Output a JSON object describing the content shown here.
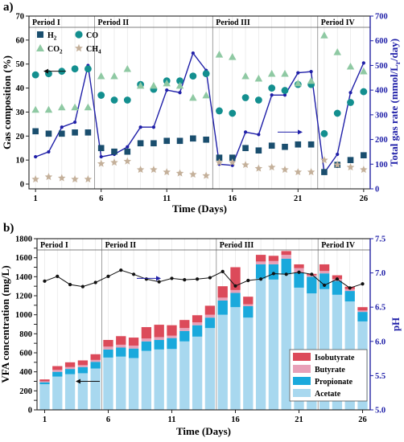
{
  "panel_a_label": "a)",
  "panel_b_label": "b)",
  "chart_data": [
    {
      "type": "scatter",
      "title": "",
      "xlabel": "Time (Days)",
      "ylabel": "Gas composition (%)",
      "y2label": "Total gas rate (mmol/Lr/day)",
      "xlim": [
        0.5,
        26.5
      ],
      "ylim": [
        -2,
        70
      ],
      "y2lim": [
        0,
        700
      ],
      "xticks": [
        1,
        6,
        11,
        16,
        21,
        26
      ],
      "yticks": [
        0,
        10,
        20,
        30,
        40,
        50,
        60,
        70
      ],
      "y2ticks": [
        0,
        100,
        200,
        300,
        400,
        500,
        600,
        700
      ],
      "periods": [
        {
          "label": "Period I",
          "start": 0.5,
          "end": 5.5
        },
        {
          "label": "Period II",
          "start": 5.5,
          "end": 14.5
        },
        {
          "label": "Period III",
          "start": 14.5,
          "end": 22.5
        },
        {
          "label": "Period IV",
          "start": 22.5,
          "end": 26.5
        }
      ],
      "legend": {
        "placement": "top-left",
        "entries": [
          "H2",
          "CO",
          "CO2",
          "CH4"
        ]
      },
      "x": [
        1,
        2,
        3,
        4,
        5,
        6,
        7,
        8,
        9,
        10,
        11,
        12,
        13,
        14,
        15,
        16,
        17,
        18,
        19,
        20,
        21,
        22,
        23,
        24,
        25,
        26
      ],
      "series": [
        {
          "name": "H2",
          "marker": "square",
          "color": "#1a4e6e",
          "axis": "left",
          "values": [
            22,
            21,
            21,
            21.5,
            21.5,
            15,
            13.5,
            13.5,
            17,
            17,
            18,
            18,
            19,
            18.5,
            11,
            11,
            15,
            14,
            16,
            15.5,
            16.5,
            16.5,
            5,
            8,
            10,
            12
          ]
        },
        {
          "name": "CO",
          "marker": "circle",
          "color": "#138f8f",
          "axis": "left",
          "values": [
            45.5,
            46,
            47,
            48,
            48,
            37,
            35,
            35,
            41.5,
            39.5,
            43,
            43,
            45,
            46,
            30.5,
            29.5,
            36,
            35,
            40,
            39,
            41.5,
            41.5,
            21,
            29.5,
            34,
            38.5
          ]
        },
        {
          "name": "CO2",
          "marker": "triangle",
          "color": "#8fc9a3",
          "axis": "left",
          "values": [
            31,
            31,
            32,
            32,
            32,
            45,
            45,
            48,
            41,
            41,
            42,
            41,
            36,
            37,
            54,
            53,
            45,
            44,
            46,
            46,
            42,
            43,
            62,
            55,
            49,
            47
          ]
        },
        {
          "name": "CH4",
          "marker": "star",
          "color": "#c4b09a",
          "axis": "left",
          "values": [
            2,
            3,
            2.5,
            2,
            2,
            8.5,
            9,
            9.5,
            6,
            6,
            5,
            4.5,
            4,
            3.5,
            9,
            9,
            8,
            6.5,
            7,
            6,
            5,
            5,
            10,
            8,
            7,
            6
          ]
        },
        {
          "name": "Total gas rate",
          "marker": "dot-line",
          "color": "#1f1fa8",
          "axis": "right",
          "values": [
            130,
            150,
            250,
            270,
            500,
            130,
            140,
            170,
            250,
            250,
            400,
            390,
            550,
            480,
            100,
            95,
            230,
            220,
            380,
            380,
            470,
            475,
            65,
            140,
            390,
            510
          ]
        }
      ]
    },
    {
      "type": "bar",
      "stacked": true,
      "title": "",
      "xlabel": "Time (Days)",
      "ylabel": "VFA concentration (mg/L)",
      "y2label": "pH",
      "xlim": [
        0.4,
        26.6
      ],
      "ylim": [
        0,
        1800
      ],
      "y2lim": [
        5.0,
        7.5
      ],
      "xticks": [
        1,
        6,
        11,
        16,
        21,
        26
      ],
      "yticks": [
        0,
        100,
        200,
        300,
        400,
        500,
        600,
        700,
        800,
        900,
        1000,
        1100,
        1200,
        1300,
        1400,
        1500,
        1600,
        1700,
        1800
      ],
      "y2ticks": [
        5.0,
        5.5,
        6.0,
        6.5,
        7.0,
        7.5
      ],
      "periods": [
        {
          "label": "Period I",
          "start": 0.4,
          "end": 5.5
        },
        {
          "label": "Period II",
          "start": 5.5,
          "end": 14.5
        },
        {
          "label": "Period III",
          "start": 14.5,
          "end": 22.5
        },
        {
          "label": "Period IV",
          "start": 22.5,
          "end": 26.6
        }
      ],
      "legend": {
        "placement": "bottom-right",
        "entries": [
          "Isobutyrate",
          "Butyrate",
          "Propionate",
          "Acetate"
        ]
      },
      "categories": [
        1,
        2,
        3,
        4,
        5,
        6,
        7,
        8,
        9,
        10,
        11,
        12,
        13,
        14,
        15,
        16,
        17,
        18,
        19,
        20,
        21,
        22,
        23,
        24,
        25,
        26
      ],
      "series": [
        {
          "name": "Acetate",
          "color": "#a8d8ef",
          "values": [
            270,
            350,
            375,
            385,
            435,
            550,
            560,
            545,
            620,
            635,
            640,
            720,
            770,
            860,
            1000,
            1080,
            970,
            1380,
            1370,
            1430,
            1285,
            1225,
            1270,
            1210,
            1140,
            930
          ]
        },
        {
          "name": "Propionate",
          "color": "#1aa9dc",
          "values": [
            20,
            50,
            55,
            65,
            70,
            85,
            95,
            100,
            100,
            100,
            115,
            110,
            120,
            110,
            150,
            150,
            120,
            150,
            160,
            160,
            160,
            175,
            165,
            145,
            110,
            100
          ]
        },
        {
          "name": "Butyrate",
          "color": "#e8a0b8",
          "values": [
            10,
            20,
            20,
            20,
            20,
            30,
            30,
            30,
            30,
            30,
            25,
            30,
            30,
            30,
            30,
            30,
            20,
            30,
            35,
            40,
            45,
            15,
            25,
            20,
            20,
            15
          ]
        },
        {
          "name": "Isobutyrate",
          "color": "#dc4a5a",
          "values": [
            20,
            40,
            50,
            50,
            60,
            70,
            90,
            85,
            120,
            130,
            110,
            85,
            75,
            95,
            120,
            240,
            80,
            70,
            55,
            40,
            40,
            15,
            70,
            40,
            25,
            35
          ]
        },
        {
          "name": "pH",
          "marker": "dot-line",
          "color": "#1f1fa8",
          "axis": "right",
          "values": [
            6.88,
            6.95,
            6.83,
            6.8,
            6.86,
            6.95,
            7.04,
            6.98,
            6.91,
            6.87,
            6.92,
            6.9,
            6.91,
            6.93,
            7.02,
            6.81,
            6.89,
            6.91,
            6.99,
            6.98,
            7.01,
            6.98,
            6.82,
            6.91,
            6.78,
            6.84
          ]
        }
      ]
    }
  ]
}
